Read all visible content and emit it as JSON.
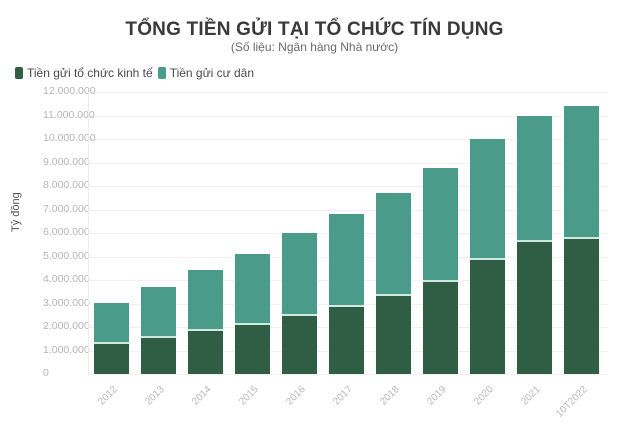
{
  "chart_data": {
    "type": "bar",
    "stacked": true,
    "title": "TỔNG TIỀN GỬI TẠI TỔ CHỨC TÍN DỤNG",
    "subtitle": "(Số liệu: Ngân hàng Nhà nước)",
    "xlabel": "",
    "ylabel": "Tỷ đồng",
    "ylim": [
      0,
      12000000
    ],
    "yticks": [
      "0",
      "1.000.000",
      "2.000.000",
      "3.000.000",
      "4.000.000",
      "5.000.000",
      "6.000.000",
      "7.000.000",
      "8.000.000",
      "9.000.000",
      "10.000.000",
      "11.000.000",
      "12.000.000"
    ],
    "grid": true,
    "legend_position": "top-left",
    "categories": [
      "2012",
      "2013",
      "2014",
      "2015",
      "2016",
      "2017",
      "2018",
      "2019",
      "2020",
      "2021",
      "10T2022"
    ],
    "series": [
      {
        "name": "Tiền gửi tổ chức kinh tế",
        "color": "#2f5e45",
        "values": [
          1280000,
          1530000,
          1830000,
          2090000,
          2470000,
          2850000,
          3320000,
          3910000,
          4850000,
          5620000,
          5740000
        ]
      },
      {
        "name": "Tiền gửi cư dân",
        "color": "#4a9b89",
        "values": [
          1740000,
          2170000,
          2600000,
          3020000,
          3530000,
          3960000,
          4380000,
          4860000,
          5150000,
          5360000,
          5660000
        ]
      }
    ],
    "totals": [
      3020000,
      3700000,
      4430000,
      5110000,
      6000000,
      6810000,
      7700000,
      8770000,
      10000000,
      10980000,
      11400000
    ]
  }
}
